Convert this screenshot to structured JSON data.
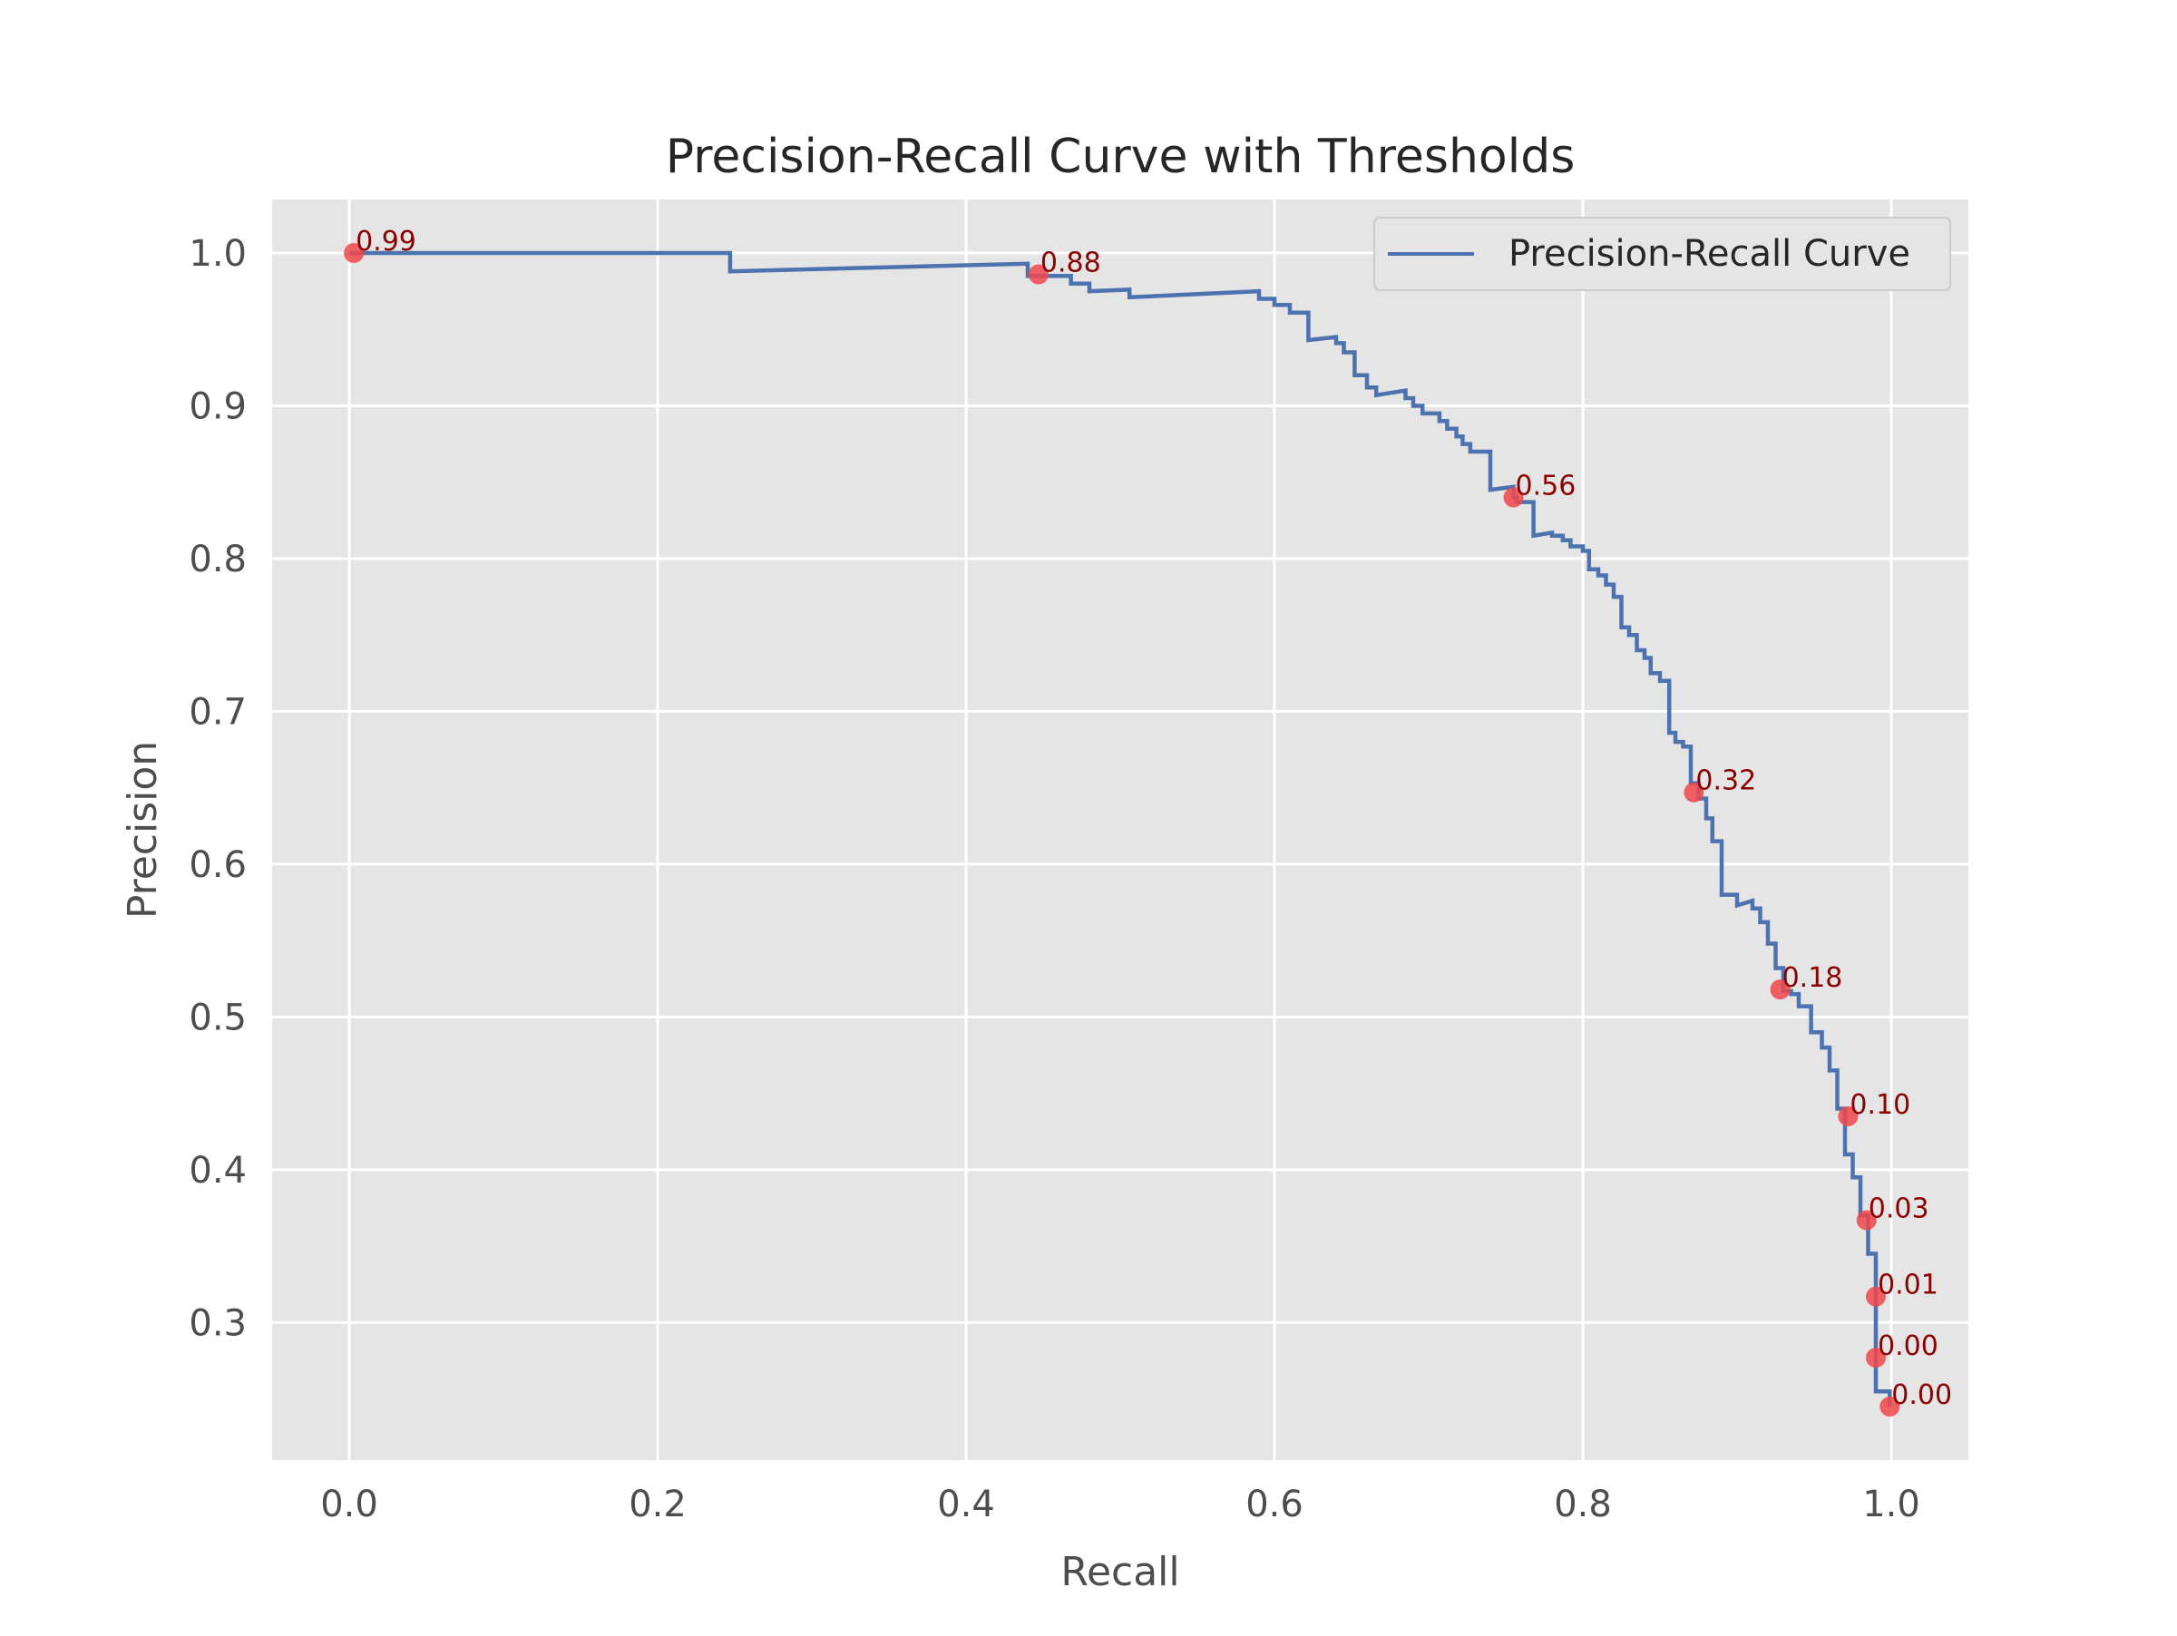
{
  "chart_data": {
    "type": "line",
    "title": "Precision-Recall Curve with Thresholds",
    "xlabel": "Recall",
    "ylabel": "Precision",
    "xlim": [
      -0.05,
      1.05
    ],
    "ylim": [
      0.21,
      1.035
    ],
    "xticks": [
      0.0,
      0.2,
      0.4,
      0.6,
      0.8,
      1.0
    ],
    "xtick_labels": [
      "0.0",
      "0.2",
      "0.4",
      "0.6",
      "0.8",
      "1.0"
    ],
    "yticks": [
      0.3,
      0.4,
      0.5,
      0.6,
      0.7,
      0.8,
      0.9,
      1.0
    ],
    "ytick_labels": [
      "0.3",
      "0.4",
      "0.5",
      "0.6",
      "0.7",
      "0.8",
      "0.9",
      "1.0"
    ],
    "grid": true,
    "legend_position": "top-right",
    "colors": {
      "plot_background": "#e5e5e5",
      "grid": "#ffffff",
      "curve": "#4c72b0",
      "points": "#f0464b",
      "annotation_text": "#8b0000",
      "text": "#4d4d4d",
      "title": "#262626"
    },
    "series": [
      {
        "name": "Precision-Recall Curve",
        "x": [
          0.0,
          0.247,
          0.247,
          0.44,
          0.44,
          0.468,
          0.468,
          0.48,
          0.48,
          0.506,
          0.506,
          0.59,
          0.59,
          0.6,
          0.6,
          0.61,
          0.61,
          0.622,
          0.622,
          0.64,
          0.64,
          0.645,
          0.645,
          0.652,
          0.652,
          0.66,
          0.66,
          0.666,
          0.666,
          0.685,
          0.685,
          0.69,
          0.69,
          0.696,
          0.696,
          0.707,
          0.707,
          0.712,
          0.712,
          0.718,
          0.718,
          0.722,
          0.722,
          0.727,
          0.727,
          0.74,
          0.74,
          0.755,
          0.755,
          0.757,
          0.757,
          0.768,
          0.768,
          0.78,
          0.78,
          0.787,
          0.787,
          0.792,
          0.792,
          0.8,
          0.8,
          0.804,
          0.804,
          0.81,
          0.81,
          0.815,
          0.815,
          0.82,
          0.82,
          0.825,
          0.825,
          0.83,
          0.83,
          0.835,
          0.835,
          0.84,
          0.84,
          0.844,
          0.844,
          0.85,
          0.85,
          0.856,
          0.856,
          0.86,
          0.86,
          0.865,
          0.865,
          0.87,
          0.87,
          0.875,
          0.875,
          0.88,
          0.88,
          0.884,
          0.884,
          0.89,
          0.89,
          0.9,
          0.9,
          0.91,
          0.91,
          0.915,
          0.915,
          0.92,
          0.92,
          0.925,
          0.925,
          0.93,
          0.93,
          0.935,
          0.935,
          0.94,
          0.94,
          0.948,
          0.948,
          0.955,
          0.955,
          0.96,
          0.96,
          0.965,
          0.965,
          0.97,
          0.97,
          0.975,
          0.975,
          0.98,
          0.98,
          0.985,
          0.985,
          0.99,
          0.99,
          0.99,
          0.99,
          0.999,
          0.999
        ],
        "y": [
          1.0,
          1.0,
          0.988,
          0.993,
          0.985,
          0.985,
          0.98,
          0.98,
          0.975,
          0.976,
          0.971,
          0.975,
          0.97,
          0.97,
          0.966,
          0.966,
          0.961,
          0.961,
          0.943,
          0.945,
          0.941,
          0.941,
          0.935,
          0.935,
          0.92,
          0.92,
          0.912,
          0.912,
          0.907,
          0.91,
          0.905,
          0.905,
          0.9,
          0.9,
          0.895,
          0.895,
          0.89,
          0.89,
          0.885,
          0.885,
          0.88,
          0.88,
          0.875,
          0.875,
          0.87,
          0.87,
          0.845,
          0.847,
          0.84,
          0.84,
          0.837,
          0.837,
          0.815,
          0.817,
          0.815,
          0.815,
          0.812,
          0.812,
          0.808,
          0.808,
          0.805,
          0.805,
          0.793,
          0.793,
          0.789,
          0.789,
          0.783,
          0.783,
          0.775,
          0.775,
          0.755,
          0.755,
          0.75,
          0.75,
          0.74,
          0.74,
          0.735,
          0.735,
          0.725,
          0.725,
          0.72,
          0.72,
          0.686,
          0.686,
          0.68,
          0.68,
          0.677,
          0.677,
          0.653,
          0.653,
          0.643,
          0.643,
          0.63,
          0.63,
          0.615,
          0.615,
          0.58,
          0.58,
          0.573,
          0.576,
          0.571,
          0.571,
          0.562,
          0.562,
          0.548,
          0.548,
          0.532,
          0.532,
          0.517,
          0.517,
          0.515,
          0.515,
          0.507,
          0.507,
          0.49,
          0.49,
          0.48,
          0.48,
          0.465,
          0.465,
          0.44,
          0.44,
          0.41,
          0.41,
          0.395,
          0.395,
          0.37,
          0.37,
          0.345,
          0.345,
          0.318,
          0.318,
          0.255,
          0.255,
          0.245
        ]
      }
    ],
    "threshold_points": {
      "recall": [
        0.003,
        0.447,
        0.755,
        0.872,
        0.928,
        0.972,
        0.984,
        0.99,
        0.99,
        0.999
      ],
      "precision": [
        1.0,
        0.986,
        0.84,
        0.647,
        0.518,
        0.435,
        0.367,
        0.317,
        0.277,
        0.245
      ],
      "labels": [
        "0.99",
        "0.88",
        "0.56",
        "0.32",
        "0.18",
        "0.10",
        "0.03",
        "0.01",
        "0.00",
        "0.00"
      ]
    }
  }
}
